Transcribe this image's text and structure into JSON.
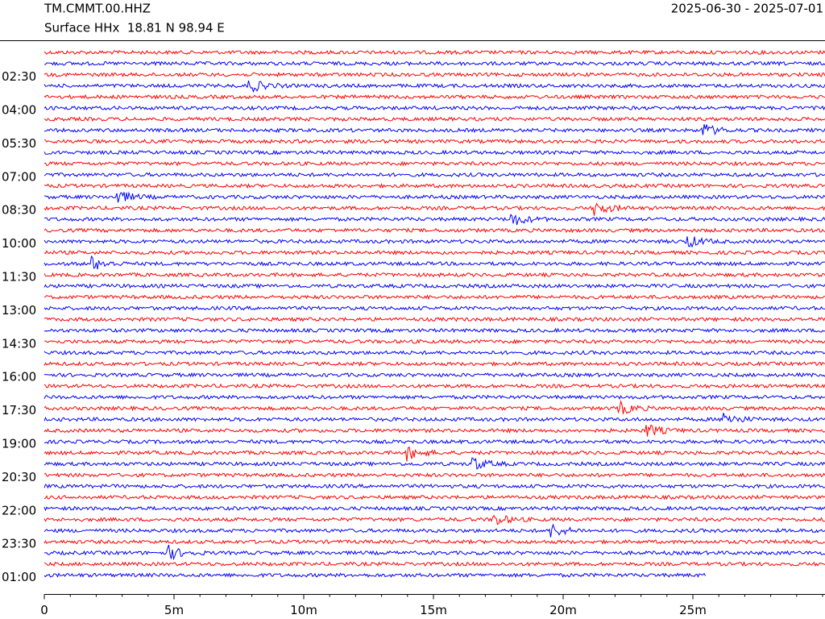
{
  "chart_data": {
    "type": "helicorder",
    "title": "TM.CMMT.00.HHZ",
    "subtitle": "Surface HHx  18.81 N 98.94 E",
    "date_range": "2025-06-30 - 2025-07-01",
    "colors": [
      "#ff0000",
      "#0000ff"
    ],
    "xlim": [
      0,
      30
    ],
    "xticks": [
      {
        "value": 0,
        "label": "0"
      },
      {
        "value": 5,
        "label": "5m"
      },
      {
        "value": 10,
        "label": "10m"
      },
      {
        "value": 15,
        "label": "15m"
      },
      {
        "value": 20,
        "label": "20m"
      },
      {
        "value": 25,
        "label": "25m"
      }
    ],
    "ylim": [
      1.5,
      25
    ],
    "yticks": [
      {
        "value": 2.5,
        "label": "02:30"
      },
      {
        "value": 4,
        "label": "04:00"
      },
      {
        "value": 5.5,
        "label": "05:30"
      },
      {
        "value": 7,
        "label": "07:00"
      },
      {
        "value": 8.5,
        "label": "08:30"
      },
      {
        "value": 10,
        "label": "10:00"
      },
      {
        "value": 11.5,
        "label": "11:30"
      },
      {
        "value": 13,
        "label": "13:00"
      },
      {
        "value": 14.5,
        "label": "14:30"
      },
      {
        "value": 16,
        "label": "16:00"
      },
      {
        "value": 17.5,
        "label": "17:30"
      },
      {
        "value": 19,
        "label": "19:00"
      },
      {
        "value": 20.5,
        "label": "20:30"
      },
      {
        "value": 22,
        "label": "22:00"
      },
      {
        "value": 23.5,
        "label": "23:30"
      },
      {
        "value": 25,
        "label": "01:00"
      }
    ],
    "row_step": 0.5,
    "last_row_end": 25.5
  }
}
